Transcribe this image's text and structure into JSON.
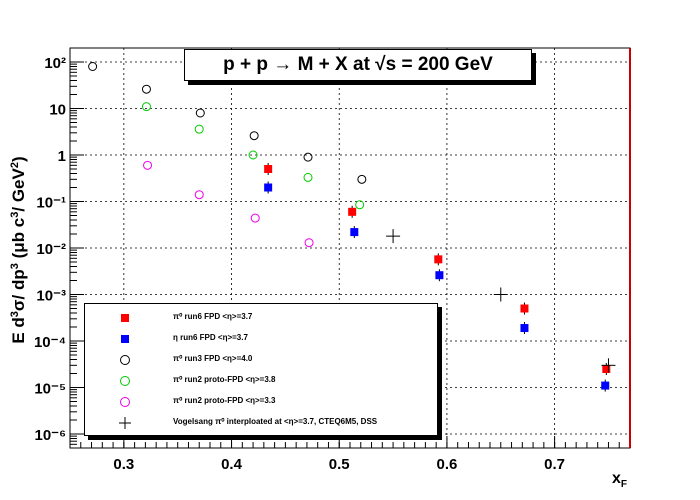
{
  "title": "p + p → M + X at √s = 200 GeV",
  "colors": {
    "red": "#ff0000",
    "blue": "#0000ff",
    "black": "#000000",
    "green": "#00cc00",
    "magenta": "#ee00ee",
    "frame_right": "#cc0000"
  },
  "chart_data": {
    "type": "scatter",
    "title": "p + p → M + X at √s = 200 GeV",
    "xlabel": "x_F",
    "ylabel": "E d³σ/dp³ (μb c³/GeV²)",
    "xlim": [
      0.25,
      0.77
    ],
    "ylim": [
      5e-07,
      200
    ],
    "yscale": "log",
    "grid": true,
    "legend_position": "bottom-left",
    "x_ticks": [
      "0.3",
      "0.4",
      "0.5",
      "0.6",
      "0.7"
    ],
    "y_ticks": [
      "10⁻⁶",
      "10⁻⁵",
      "10⁻⁴",
      "10⁻³",
      "10⁻²",
      "10⁻¹",
      "1",
      "10",
      "10²"
    ],
    "series": [
      {
        "name": "π⁰  run6 FPD  <η>=3.7",
        "marker": "filled-square",
        "color": "#ff0000",
        "points": [
          {
            "x": 0.434,
            "y": 0.5
          },
          {
            "x": 0.512,
            "y": 0.06
          },
          {
            "x": 0.592,
            "y": 0.0057
          },
          {
            "x": 0.672,
            "y": 0.0005
          },
          {
            "x": 0.748,
            "y": 2.5e-05
          }
        ]
      },
      {
        "name": "η   run6 FPD  <η>=3.7",
        "marker": "filled-square",
        "color": "#0000ff",
        "points": [
          {
            "x": 0.434,
            "y": 0.2
          },
          {
            "x": 0.514,
            "y": 0.022
          },
          {
            "x": 0.593,
            "y": 0.0026
          },
          {
            "x": 0.672,
            "y": 0.00019
          },
          {
            "x": 0.747,
            "y": 1.1e-05
          }
        ]
      },
      {
        "name": "π⁰  run3 FPD  <η>=4.0",
        "marker": "open-circle",
        "color": "#000000",
        "points": [
          {
            "x": 0.271,
            "y": 80
          },
          {
            "x": 0.321,
            "y": 26
          },
          {
            "x": 0.371,
            "y": 8
          },
          {
            "x": 0.421,
            "y": 2.6
          },
          {
            "x": 0.471,
            "y": 0.9
          },
          {
            "x": 0.521,
            "y": 0.3
          }
        ]
      },
      {
        "name": "π⁰  run2 proto-FPD  <η>=3.8",
        "marker": "open-circle",
        "color": "#00cc00",
        "points": [
          {
            "x": 0.321,
            "y": 11
          },
          {
            "x": 0.37,
            "y": 3.6
          },
          {
            "x": 0.42,
            "y": 1.0
          },
          {
            "x": 0.471,
            "y": 0.33
          },
          {
            "x": 0.519,
            "y": 0.085
          }
        ]
      },
      {
        "name": "π⁰  run2 proto-FPD  <η>=3.3",
        "marker": "open-circle",
        "color": "#ee00ee",
        "points": [
          {
            "x": 0.322,
            "y": 0.6
          },
          {
            "x": 0.37,
            "y": 0.14
          },
          {
            "x": 0.422,
            "y": 0.044
          },
          {
            "x": 0.472,
            "y": 0.013
          }
        ]
      },
      {
        "name": "Vogelsang π⁰ interploated at <η>=3.7, CTEQ6M5, DSS",
        "marker": "cross",
        "color": "#000000",
        "points": [
          {
            "x": 0.55,
            "y": 0.018
          },
          {
            "x": 0.65,
            "y": 0.001
          },
          {
            "x": 0.75,
            "y": 3e-05
          }
        ]
      }
    ]
  }
}
